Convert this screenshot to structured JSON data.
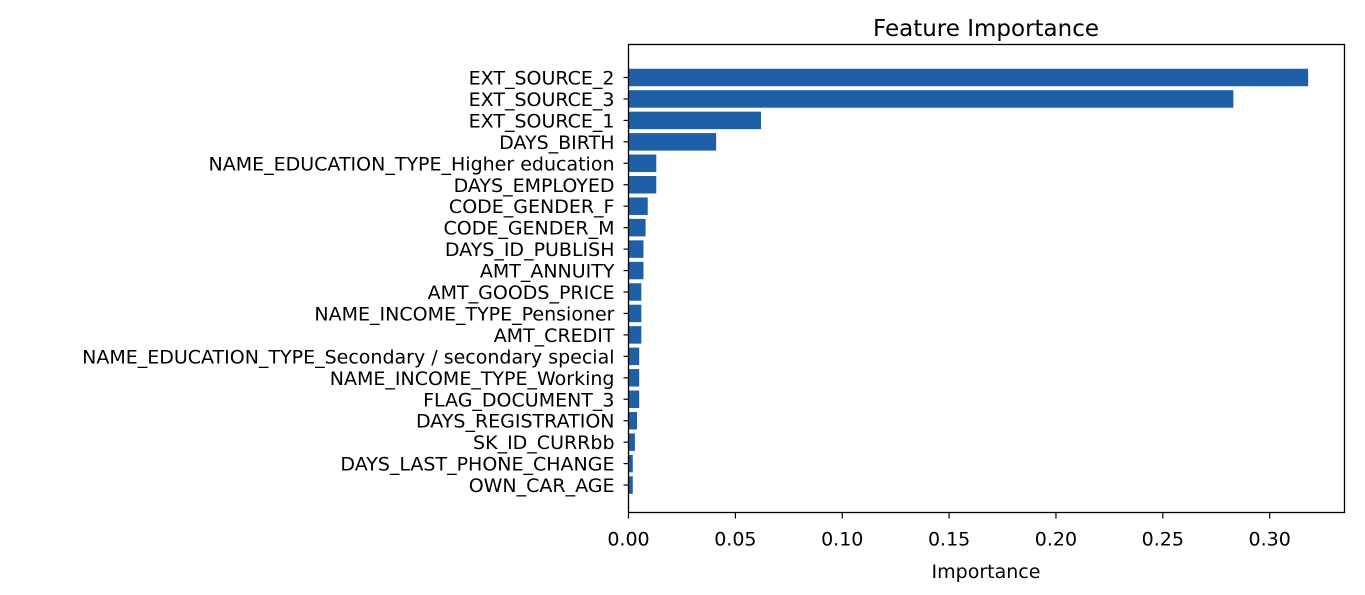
{
  "chart_data": {
    "type": "bar",
    "orientation": "horizontal",
    "title": "Feature Importance",
    "xlabel": "Importance",
    "ylabel": "",
    "xlim": [
      0,
      0.335
    ],
    "xticks": [
      "0.00",
      "0.05",
      "0.10",
      "0.15",
      "0.20",
      "0.25",
      "0.30"
    ],
    "xtick_values": [
      0,
      0.05,
      0.1,
      0.15,
      0.2,
      0.25,
      0.3
    ],
    "grid": false,
    "bar_color": "#1f5fa8",
    "categories": [
      "EXT_SOURCE_2",
      "EXT_SOURCE_3",
      "EXT_SOURCE_1",
      "DAYS_BIRTH",
      "NAME_EDUCATION_TYPE_Higher education",
      "DAYS_EMPLOYED",
      "CODE_GENDER_F",
      "CODE_GENDER_M",
      "DAYS_ID_PUBLISH",
      "AMT_ANNUITY",
      "AMT_GOODS_PRICE",
      "NAME_INCOME_TYPE_Pensioner",
      "AMT_CREDIT",
      "NAME_EDUCATION_TYPE_Secondary / secondary special",
      "NAME_INCOME_TYPE_Working",
      "FLAG_DOCUMENT_3",
      "DAYS_REGISTRATION",
      "SK_ID_CURRbb",
      "DAYS_LAST_PHONE_CHANGE",
      "OWN_CAR_AGE"
    ],
    "values": [
      0.318,
      0.283,
      0.062,
      0.041,
      0.013,
      0.013,
      0.009,
      0.008,
      0.007,
      0.007,
      0.006,
      0.006,
      0.006,
      0.005,
      0.005,
      0.005,
      0.004,
      0.003,
      0.002,
      0.002
    ]
  }
}
